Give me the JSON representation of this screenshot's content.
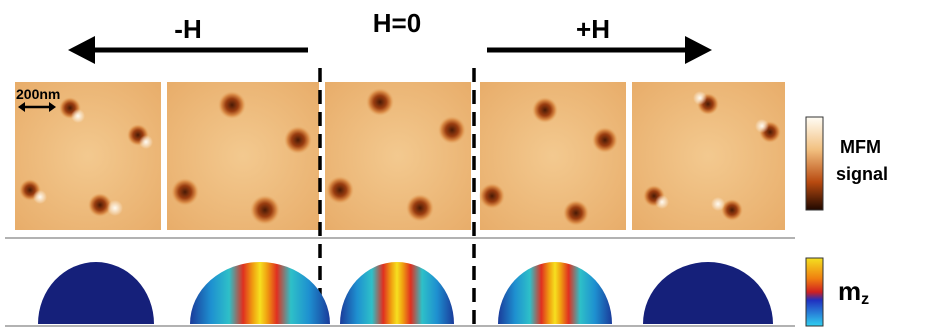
{
  "field_labels": {
    "left": "-H",
    "center": "H=0",
    "right": "+H"
  },
  "scale_bar": "200nm",
  "colorbars": {
    "mfm": {
      "lines": [
        "MFM",
        "signal"
      ]
    },
    "mz": {
      "symbol": "m",
      "subscript": "z"
    }
  }
}
